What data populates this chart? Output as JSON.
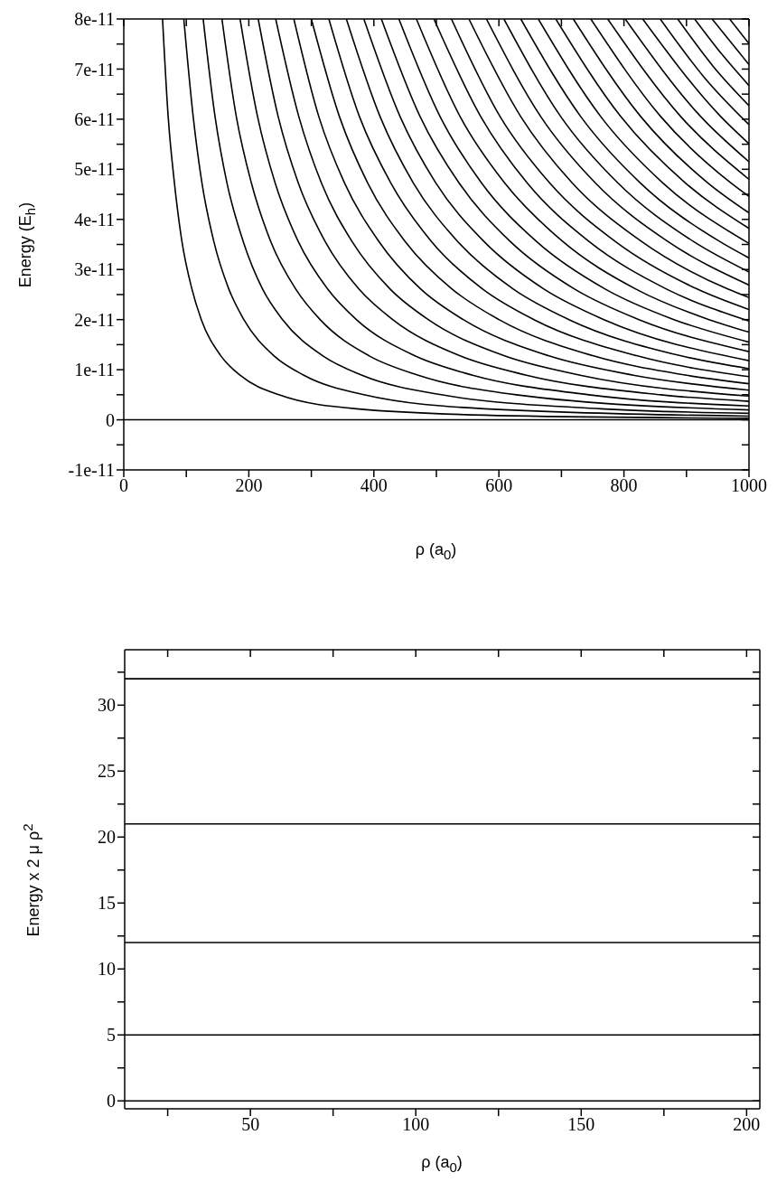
{
  "chart_data": [
    {
      "type": "line",
      "xlabel": "ρ (a$_{0}$)",
      "ylabel": "Energy (E$_{h}$)",
      "xlim": [
        0,
        1000
      ],
      "ylim": [
        -1e-11,
        8e-11
      ],
      "line_style": "solid",
      "xticks": [
        0,
        {
          "value": 100,
          "label": null
        },
        200,
        {
          "value": 300,
          "label": null
        },
        400,
        {
          "value": 500,
          "label": null
        },
        600,
        {
          "value": 700,
          "label": null
        },
        800,
        {
          "value": 900,
          "label": null
        },
        1000
      ],
      "yticks": [
        {
          "value": -1e-11,
          "label": "-1e-11"
        },
        {
          "value": -5e-12,
          "label": null
        },
        0,
        {
          "value": 5e-12,
          "label": null
        },
        {
          "value": 1e-11,
          "label": "1e-11"
        },
        {
          "value": 1.5e-11,
          "label": null
        },
        {
          "value": 2e-11,
          "label": "2e-11"
        },
        {
          "value": 2.5e-11,
          "label": null
        },
        {
          "value": 3e-11,
          "label": "3e-11"
        },
        {
          "value": 3.5e-11,
          "label": null
        },
        {
          "value": 4e-11,
          "label": "4e-11"
        },
        {
          "value": 4.5e-11,
          "label": null
        },
        {
          "value": 5e-11,
          "label": "5e-11"
        },
        {
          "value": 5.5e-11,
          "label": null
        },
        {
          "value": 6e-11,
          "label": "6e-11"
        },
        {
          "value": 6.5e-11,
          "label": null
        },
        {
          "value": 7e-11,
          "label": "7e-11"
        },
        {
          "value": 7.5e-11,
          "label": null
        },
        {
          "value": 8e-11,
          "label": "8e-11"
        }
      ],
      "series": [
        {
          "color": "#000000",
          "x": [
            0,
            1000
          ],
          "values": [
            0,
            0
          ]
        },
        {
          "color": "#000000",
          "x": [
            62,
            71,
            81,
            93,
            109,
            124,
            155,
            186,
            248,
            372,
            620,
            1000
          ],
          "values": [
            8e-11,
            6.05e-11,
            4.73e-11,
            3.56e-11,
            2.61e-11,
            2e-11,
            1.28e-11,
            8.9e-12,
            5e-12,
            2.2e-12,
            8e-13,
            3.1e-13
          ]
        },
        {
          "color": "#000000",
          "x": [
            96,
            111,
            125,
            144,
            168,
            192,
            240,
            288,
            384,
            577,
            1000
          ],
          "values": [
            8e-11,
            6.05e-11,
            4.73e-11,
            3.56e-11,
            2.61e-11,
            2e-11,
            1.28e-11,
            8.9e-12,
            5e-12,
            2.2e-12,
            7.4e-13
          ]
        },
        {
          "color": "#000000",
          "x": [
            127,
            146,
            165,
            191,
            222,
            254,
            318,
            381,
            508,
            763,
            1000
          ],
          "values": [
            8e-11,
            6.05e-11,
            4.73e-11,
            3.56e-11,
            2.61e-11,
            2e-11,
            1.28e-11,
            8.9e-12,
            5e-12,
            2.2e-12,
            1.29e-12
          ]
        },
        {
          "color": "#000000",
          "x": [
            157,
            180,
            204,
            235,
            275,
            314,
            392,
            471,
            628,
            1000
          ],
          "values": [
            8e-11,
            6.05e-11,
            4.73e-11,
            3.56e-11,
            2.61e-11,
            2e-11,
            1.28e-11,
            8.9e-12,
            5e-12,
            1.97e-12
          ]
        },
        {
          "color": "#000000",
          "x": [
            186,
            214,
            242,
            279,
            326,
            372,
            465,
            558,
            744,
            1000
          ],
          "values": [
            8e-11,
            6.05e-11,
            4.73e-11,
            3.56e-11,
            2.61e-11,
            2e-11,
            1.28e-11,
            8.9e-12,
            5e-12,
            2.77e-12
          ]
        },
        {
          "color": "#000000",
          "x": [
            215,
            247,
            279,
            322,
            376,
            430,
            537,
            644,
            859,
            1000
          ],
          "values": [
            8e-11,
            6.05e-11,
            4.73e-11,
            3.56e-11,
            2.61e-11,
            2e-11,
            1.28e-11,
            8.9e-12,
            5e-12,
            3.69e-12
          ]
        },
        {
          "color": "#000000",
          "x": [
            243,
            280,
            316,
            365,
            426,
            487,
            608,
            730,
            1000
          ],
          "values": [
            8e-11,
            6.05e-11,
            4.73e-11,
            3.56e-11,
            2.61e-11,
            2e-11,
            1.28e-11,
            8.9e-12,
            4.74e-12
          ]
        },
        {
          "color": "#000000",
          "x": [
            272,
            312,
            353,
            408,
            475,
            543,
            679,
            815,
            1000
          ],
          "values": [
            8e-11,
            6.05e-11,
            4.73e-11,
            3.56e-11,
            2.61e-11,
            2e-11,
            1.28e-11,
            8.9e-12,
            5.91e-12
          ]
        },
        {
          "color": "#000000",
          "x": [
            300,
            345,
            390,
            450,
            525,
            600,
            750,
            900,
            1000
          ],
          "values": [
            8e-11,
            6.05e-11,
            4.73e-11,
            3.56e-11,
            2.61e-11,
            2e-11,
            1.28e-11,
            8.9e-12,
            7.2e-12
          ]
        },
        {
          "color": "#000000",
          "x": [
            328,
            377,
            427,
            492,
            574,
            656,
            820,
            1000
          ],
          "values": [
            8e-11,
            6.05e-11,
            4.73e-11,
            3.56e-11,
            2.61e-11,
            2e-11,
            1.28e-11,
            8.61e-12
          ]
        },
        {
          "color": "#000000",
          "x": [
            356,
            410,
            463,
            534,
            623,
            712,
            890,
            1000
          ],
          "values": [
            8e-11,
            6.05e-11,
            4.73e-11,
            3.56e-11,
            2.61e-11,
            2e-11,
            1.28e-11,
            1.02e-11
          ]
        },
        {
          "color": "#000000",
          "x": [
            384,
            442,
            499,
            576,
            672,
            768,
            1000
          ],
          "values": [
            8e-11,
            6.05e-11,
            4.73e-11,
            3.56e-11,
            2.61e-11,
            2e-11,
            1.18e-11
          ]
        },
        {
          "color": "#000000",
          "x": [
            412,
            474,
            536,
            618,
            721,
            824,
            1000
          ],
          "values": [
            8e-11,
            6.05e-11,
            4.73e-11,
            3.56e-11,
            2.61e-11,
            2e-11,
            1.36e-11
          ]
        },
        {
          "color": "#000000",
          "x": [
            440,
            506,
            572,
            660,
            770,
            880,
            1000
          ],
          "values": [
            8e-11,
            6.05e-11,
            4.73e-11,
            3.56e-11,
            2.61e-11,
            2e-11,
            1.55e-11
          ]
        },
        {
          "color": "#000000",
          "x": [
            468,
            538,
            609,
            702,
            819,
            936,
            1000
          ],
          "values": [
            8e-11,
            6.05e-11,
            4.73e-11,
            3.56e-11,
            2.61e-11,
            2e-11,
            1.75e-11
          ]
        },
        {
          "color": "#000000",
          "x": [
            496,
            571,
            645,
            744,
            868,
            1000
          ],
          "values": [
            8e-11,
            6.05e-11,
            4.73e-11,
            3.56e-11,
            2.61e-11,
            1.97e-11
          ]
        },
        {
          "color": "#000000",
          "x": [
            524,
            602,
            681,
            786,
            917,
            1000
          ],
          "values": [
            8e-11,
            6.05e-11,
            4.73e-11,
            3.56e-11,
            2.61e-11,
            2.2e-11
          ]
        },
        {
          "color": "#000000",
          "x": [
            552,
            635,
            717,
            828,
            966,
            1000
          ],
          "values": [
            8e-11,
            6.05e-11,
            4.73e-11,
            3.56e-11,
            2.61e-11,
            2.44e-11
          ]
        },
        {
          "color": "#000000",
          "x": [
            580,
            667,
            754,
            870,
            1000
          ],
          "values": [
            8e-11,
            6.05e-11,
            4.73e-11,
            3.56e-11,
            2.69e-11
          ]
        },
        {
          "color": "#000000",
          "x": [
            608,
            699,
            790,
            911,
            1000
          ],
          "values": [
            8e-11,
            6.05e-11,
            4.73e-11,
            3.56e-11,
            2.95e-11
          ]
        },
        {
          "color": "#000000",
          "x": [
            635,
            731,
            826,
            953,
            1000
          ],
          "values": [
            8e-11,
            6.05e-11,
            4.73e-11,
            3.56e-11,
            3.23e-11
          ]
        },
        {
          "color": "#000000",
          "x": [
            663,
            763,
            862,
            1000
          ],
          "values": [
            8e-11,
            6.05e-11,
            4.73e-11,
            3.52e-11
          ]
        },
        {
          "color": "#000000",
          "x": [
            691,
            795,
            898,
            1000
          ],
          "values": [
            8e-11,
            6.05e-11,
            4.73e-11,
            3.82e-11
          ]
        },
        {
          "color": "#000000",
          "x": [
            719,
            827,
            934,
            1000
          ],
          "values": [
            8e-11,
            6.05e-11,
            4.73e-11,
            4.13e-11
          ]
        },
        {
          "color": "#000000",
          "x": [
            747,
            859,
            971,
            1000
          ],
          "values": [
            8e-11,
            6.05e-11,
            4.73e-11,
            4.46e-11
          ]
        },
        {
          "color": "#000000",
          "x": [
            774,
            891,
            1000
          ],
          "values": [
            8e-11,
            6.05e-11,
            4.8e-11
          ]
        },
        {
          "color": "#000000",
          "x": [
            802,
            923,
            1000
          ],
          "values": [
            8e-11,
            6.05e-11,
            5.15e-11
          ]
        },
        {
          "color": "#000000",
          "x": [
            830,
            955,
            1000
          ],
          "values": [
            8e-11,
            6.05e-11,
            5.51e-11
          ]
        },
        {
          "color": "#000000",
          "x": [
            858,
            930,
            1000
          ],
          "values": [
            8e-11,
            6.81e-11,
            5.89e-11
          ]
        },
        {
          "color": "#000000",
          "x": [
            886,
            943,
            1000
          ],
          "values": [
            8e-11,
            7.05e-11,
            6.27e-11
          ]
        },
        {
          "color": "#000000",
          "x": [
            913,
            957,
            1000
          ],
          "values": [
            8e-11,
            7.29e-11,
            6.67e-11
          ]
        },
        {
          "color": "#000000",
          "x": [
            941,
            1000
          ],
          "values": [
            8e-11,
            7.09e-11
          ]
        },
        {
          "color": "#000000",
          "x": [
            969,
            1000
          ],
          "values": [
            8e-11,
            7.51e-11
          ]
        }
      ]
    },
    {
      "type": "line",
      "xlabel": "ρ (a$_{0}$)",
      "ylabel": "Energy x 2 μ ρ$^{2}$",
      "xlim": [
        12,
        204
      ],
      "ylim": [
        -0.6,
        34.2
      ],
      "line_style": "solid",
      "xticks": [
        {
          "value": 25,
          "label": null
        },
        50,
        {
          "value": 75,
          "label": null
        },
        100,
        {
          "value": 125,
          "label": null
        },
        150,
        {
          "value": 175,
          "label": null
        },
        200
      ],
      "yticks": [
        0,
        {
          "value": 2.5,
          "label": null
        },
        5,
        {
          "value": 7.5,
          "label": null
        },
        10,
        {
          "value": 12.5,
          "label": null
        },
        15,
        {
          "value": 17.5,
          "label": null
        },
        20,
        {
          "value": 22.5,
          "label": null
        },
        25,
        {
          "value": 27.5,
          "label": null
        },
        30,
        {
          "value": 32.5,
          "label": null
        }
      ],
      "series": [
        {
          "color": "#000000",
          "x": [
            12,
            204
          ],
          "values": [
            0,
            0
          ]
        },
        {
          "color": "#000000",
          "x": [
            12,
            204
          ],
          "values": [
            5,
            5
          ]
        },
        {
          "color": "#000000",
          "x": [
            12,
            204
          ],
          "values": [
            12,
            12
          ]
        },
        {
          "color": "#000000",
          "x": [
            12,
            204
          ],
          "values": [
            21,
            21
          ]
        },
        {
          "color": "#000000",
          "x": [
            12,
            204
          ],
          "values": [
            32,
            32
          ]
        }
      ]
    }
  ]
}
